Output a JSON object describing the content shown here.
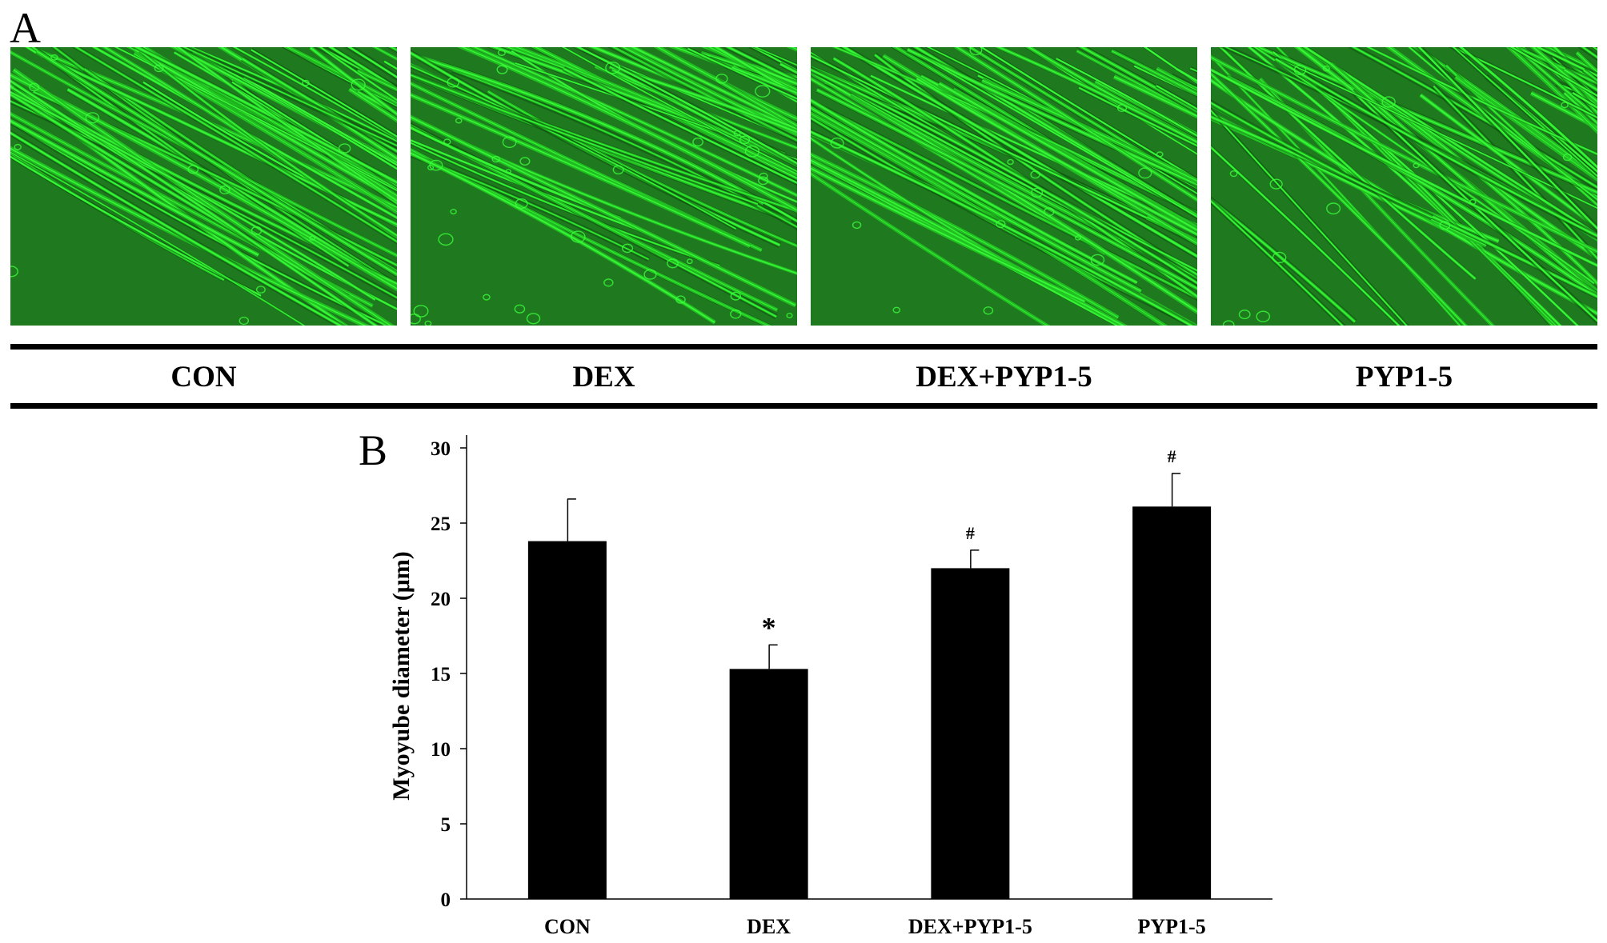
{
  "figure": {
    "panel_a_label": "A",
    "panel_b_label": "B"
  },
  "panel_a": {
    "images": [
      {
        "label": "CON",
        "image_type": "green phase-contrast micrograph of myotubes"
      },
      {
        "label": "DEX",
        "image_type": "green phase-contrast micrograph of myotubes"
      },
      {
        "label": "DEX+PYP1-5",
        "image_type": "green phase-contrast micrograph of myotubes"
      },
      {
        "label": "PYP1-5",
        "image_type": "green phase-contrast micrograph of myotubes"
      }
    ],
    "colors": {
      "micrograph_base": "#1f7a1f",
      "fiber_bright": "#39ff39",
      "fiber_mid": "#22c722",
      "fiber_dark": "#0f4f0f"
    }
  },
  "chart_data": {
    "type": "bar",
    "categories": [
      "CON",
      "DEX",
      "DEX+PYP1-5",
      "PYP1-5"
    ],
    "values": [
      23.8,
      15.3,
      22.0,
      26.1
    ],
    "errors": [
      2.8,
      1.6,
      1.2,
      2.2
    ],
    "annotations": [
      "",
      "*",
      "#",
      "#"
    ],
    "title": "",
    "xlabel": "",
    "ylabel": "Myoyube diameter (μm)",
    "ylim": [
      0,
      30
    ],
    "yticks": [
      0,
      5,
      10,
      15,
      20,
      25,
      30
    ],
    "grid": false,
    "legend": "none",
    "bar_color": "#000000"
  }
}
